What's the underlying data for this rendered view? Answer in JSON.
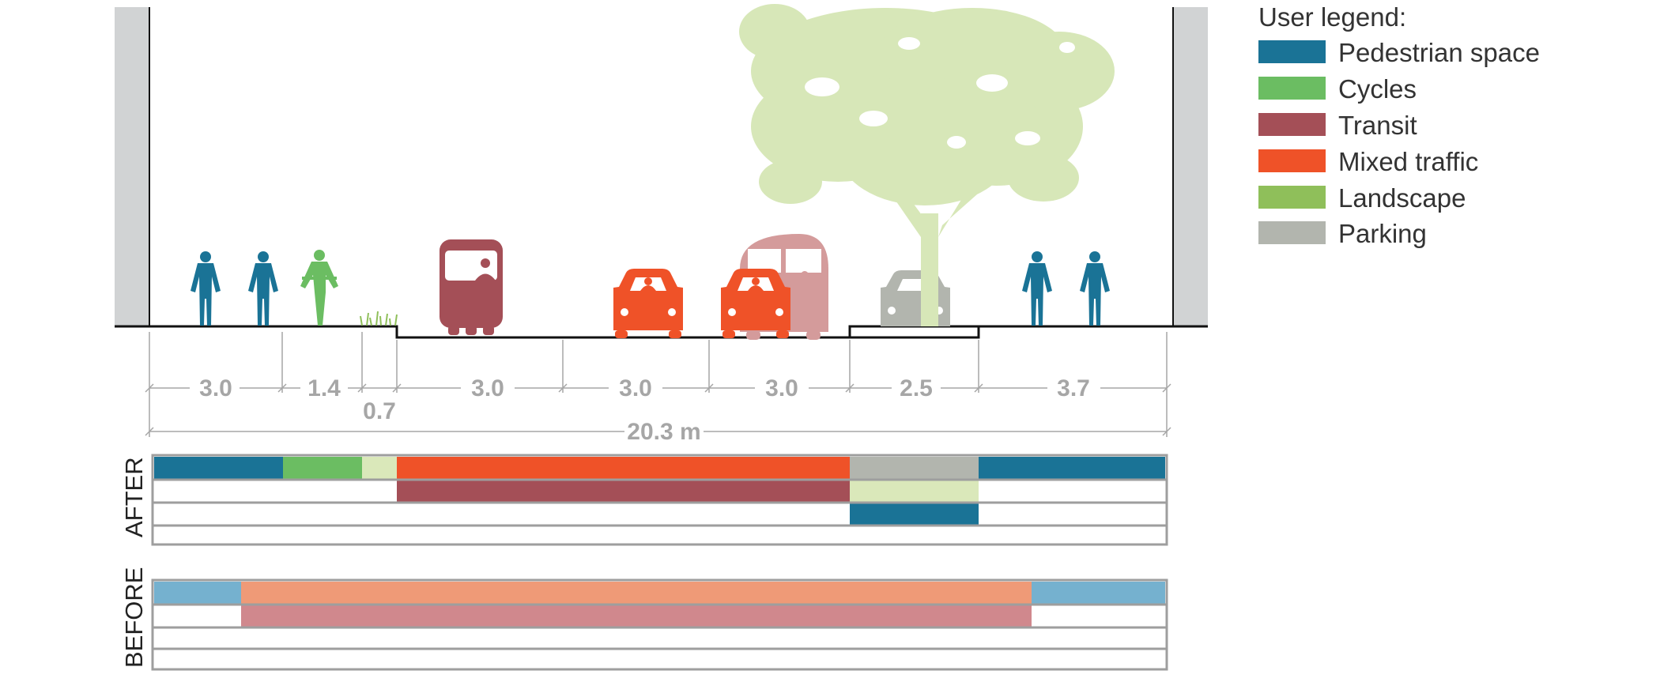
{
  "colors": {
    "pedestrian": "#1a7396",
    "cycles": "#6bbd62",
    "transit": "#a44f57",
    "mixed_traffic": "#ef5228",
    "landscape": "#8fbf5a",
    "parking": "#b2b5ae",
    "landscape_light": "#dae8ba",
    "transit_light": "#d49b9b",
    "tree": "#d7e7b8",
    "building": "#d1d3d4",
    "ped_before": "#75b1cf",
    "mixed_before": "#ef9a77",
    "transit_before": "#d0888d",
    "grid": "#9e9e9e",
    "dim": "#a6a6a6"
  },
  "legend": {
    "title": "User legend:",
    "items": [
      {
        "label": "Pedestrian space",
        "color": "#1a7396"
      },
      {
        "label": "Cycles",
        "color": "#6bbd62"
      },
      {
        "label": "Transit",
        "color": "#a44f57"
      },
      {
        "label": "Mixed traffic",
        "color": "#ef5228"
      },
      {
        "label": "Landscape",
        "color": "#8fbf5a"
      },
      {
        "label": "Parking",
        "color": "#b2b5ae"
      }
    ]
  },
  "dimensions": {
    "segments": [
      "3.0",
      "1.4",
      "0.7",
      "3.0",
      "3.0",
      "3.0",
      "2.5",
      "3.7"
    ],
    "total": "20.3 m"
  },
  "after": {
    "label": "AFTER"
  },
  "before": {
    "label": "BEFORE"
  },
  "section_icons": [
    "pedestrian-icon",
    "pedestrian-icon",
    "cyclist-icon",
    "grass-icon",
    "tram-icon",
    "car-icon",
    "car-icon",
    "bus-icon",
    "tree-icon",
    "parked-car-icon",
    "pedestrian-icon",
    "pedestrian-icon"
  ]
}
